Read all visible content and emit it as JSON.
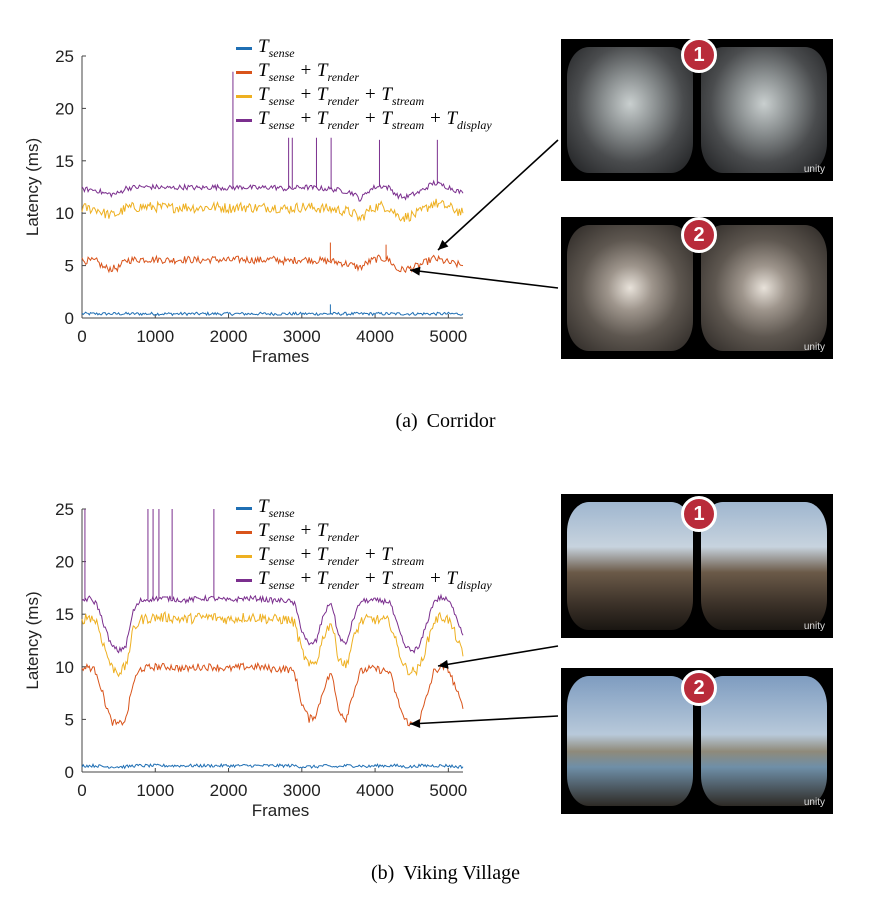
{
  "chart_data": [
    {
      "type": "line",
      "caption_label": "(a)",
      "caption_text": "Corridor",
      "xlabel": "Frames",
      "ylabel": "Latency (ms)",
      "xlim": [
        0,
        5200
      ],
      "ylim": [
        0,
        25
      ],
      "xticks": [
        0,
        1000,
        2000,
        3000,
        4000,
        5000
      ],
      "yticks": [
        0,
        5,
        10,
        15,
        20,
        25
      ],
      "legend_position": "top",
      "x": [
        0,
        200,
        300,
        400,
        500,
        600,
        800,
        1000,
        1200,
        1400,
        1600,
        1800,
        2000,
        2200,
        2400,
        2600,
        2800,
        3000,
        3200,
        3400,
        3600,
        3700,
        3800,
        3900,
        4000,
        4100,
        4200,
        4300,
        4400,
        4600,
        4800,
        5000,
        5200
      ],
      "series": [
        {
          "name": "T_sense",
          "label_main": "T",
          "label_sub": "sense",
          "color": "#1f6fb4",
          "values": [
            0.4,
            0.4,
            0.4,
            0.4,
            0.4,
            0.4,
            0.4,
            0.4,
            0.4,
            0.4,
            0.4,
            0.4,
            0.4,
            0.4,
            0.4,
            0.4,
            0.4,
            0.4,
            0.4,
            0.4,
            0.4,
            0.4,
            0.4,
            0.4,
            0.4,
            0.4,
            0.4,
            0.4,
            0.4,
            0.4,
            0.4,
            0.4,
            0.4
          ]
        },
        {
          "name": "T_sense + T_render",
          "label_main": "T",
          "label_sub": "sense",
          "label_rest": " + T",
          "label_sub2": "render",
          "color": "#d9541b",
          "values": [
            5.5,
            5.4,
            4.8,
            4.7,
            4.8,
            5.5,
            5.6,
            5.6,
            5.5,
            5.6,
            5.5,
            5.6,
            5.5,
            5.6,
            5.5,
            5.6,
            5.4,
            5.6,
            5.5,
            5.4,
            5.2,
            5.0,
            4.8,
            5.3,
            5.6,
            5.7,
            5.5,
            4.6,
            4.6,
            5.0,
            5.7,
            5.3,
            5.0
          ]
        },
        {
          "name": "T_sense + T_render + T_stream",
          "color": "#eeb021",
          "values": [
            10.5,
            10.4,
            10.0,
            9.8,
            10.0,
            10.5,
            10.6,
            10.6,
            10.5,
            10.6,
            10.5,
            10.6,
            10.5,
            10.6,
            10.5,
            10.6,
            10.4,
            10.6,
            10.5,
            10.4,
            10.2,
            10.0,
            9.4,
            10.2,
            10.6,
            10.7,
            10.5,
            9.8,
            9.6,
            10.0,
            11.0,
            10.6,
            10.0
          ]
        },
        {
          "name": "T_sense + T_render + T_stream + T_display",
          "color": "#7b2f8e",
          "values": [
            12.3,
            12.2,
            11.9,
            11.8,
            11.9,
            12.4,
            12.5,
            12.5,
            12.4,
            12.5,
            12.4,
            12.5,
            12.4,
            12.5,
            12.4,
            12.5,
            12.3,
            12.5,
            12.4,
            12.3,
            12.1,
            11.9,
            11.3,
            12.1,
            12.5,
            12.6,
            12.4,
            11.7,
            11.5,
            12.0,
            12.9,
            12.5,
            11.9
          ]
        }
      ],
      "spikes": [
        {
          "series": 3,
          "x": 2060,
          "y": 23.5
        },
        {
          "series": 3,
          "x": 2820,
          "y": 17.2
        },
        {
          "series": 3,
          "x": 2870,
          "y": 17.2
        },
        {
          "series": 3,
          "x": 3200,
          "y": 17.2
        },
        {
          "series": 3,
          "x": 3400,
          "y": 17.2
        },
        {
          "series": 3,
          "x": 4060,
          "y": 17.0
        },
        {
          "series": 3,
          "x": 4850,
          "y": 17.0
        },
        {
          "series": 1,
          "x": 3390,
          "y": 7.2
        },
        {
          "series": 1,
          "x": 4150,
          "y": 7.0
        },
        {
          "series": 0,
          "x": 3390,
          "y": 1.3
        }
      ],
      "thumbnails": [
        {
          "badge": "1",
          "brand": "unity"
        },
        {
          "badge": "2",
          "brand": "unity"
        }
      ]
    },
    {
      "type": "line",
      "caption_label": "(b)",
      "caption_text": "Viking Village",
      "xlabel": "Frames",
      "ylabel": "Latency (ms)",
      "xlim": [
        0,
        5200
      ],
      "ylim": [
        0,
        25
      ],
      "xticks": [
        0,
        1000,
        2000,
        3000,
        4000,
        5000
      ],
      "yticks": [
        0,
        5,
        10,
        15,
        20,
        25
      ],
      "legend_position": "top",
      "x": [
        0,
        100,
        200,
        300,
        400,
        500,
        600,
        700,
        800,
        1000,
        1200,
        1400,
        1600,
        1800,
        2000,
        2200,
        2400,
        2600,
        2800,
        2900,
        3000,
        3100,
        3200,
        3300,
        3400,
        3500,
        3600,
        3700,
        3800,
        3900,
        4000,
        4200,
        4300,
        4400,
        4500,
        4600,
        4700,
        4800,
        4900,
        5000,
        5100,
        5200
      ],
      "series": [
        {
          "name": "T_sense",
          "color": "#1f6fb4",
          "values": [
            0.6,
            0.6,
            0.6,
            0.5,
            0.5,
            0.5,
            0.5,
            0.6,
            0.6,
            0.6,
            0.6,
            0.6,
            0.6,
            0.6,
            0.6,
            0.6,
            0.6,
            0.6,
            0.6,
            0.6,
            0.5,
            0.5,
            0.5,
            0.6,
            0.5,
            0.5,
            0.6,
            0.6,
            0.6,
            0.5,
            0.6,
            0.6,
            0.6,
            0.5,
            0.5,
            0.6,
            0.6,
            0.6,
            0.6,
            0.6,
            0.5,
            0.5
          ]
        },
        {
          "name": "T_sense + T_render",
          "color": "#d9541b",
          "values": [
            9.8,
            10.0,
            9.5,
            7.0,
            4.8,
            4.5,
            5.0,
            8.5,
            9.8,
            10.0,
            10.0,
            9.8,
            10.0,
            10.0,
            9.8,
            10.0,
            10.0,
            9.8,
            9.8,
            9.5,
            6.5,
            5.0,
            5.5,
            8.0,
            9.5,
            6.0,
            5.0,
            7.5,
            9.5,
            9.8,
            9.8,
            9.5,
            7.0,
            5.0,
            4.5,
            4.8,
            7.0,
            9.5,
            10.0,
            9.8,
            8.0,
            6.0
          ]
        },
        {
          "name": "T_sense + T_render + T_stream",
          "color": "#eeb021",
          "values": [
            14.5,
            14.8,
            14.3,
            12.0,
            10.0,
            9.5,
            10.0,
            13.5,
            14.5,
            14.7,
            14.7,
            14.5,
            14.7,
            14.7,
            14.5,
            14.7,
            14.7,
            14.5,
            14.5,
            14.2,
            11.5,
            10.0,
            10.5,
            13.0,
            14.3,
            11.0,
            10.0,
            12.5,
            14.3,
            14.5,
            14.5,
            14.3,
            12.0,
            10.0,
            9.5,
            9.8,
            12.0,
            14.3,
            14.8,
            14.5,
            13.0,
            11.0
          ]
        },
        {
          "name": "T_sense + T_render + T_stream + T_display",
          "color": "#7b2f8e",
          "values": [
            16.3,
            16.5,
            16.0,
            14.0,
            12.0,
            11.5,
            12.0,
            15.3,
            16.3,
            16.5,
            16.5,
            16.3,
            16.5,
            16.5,
            16.3,
            16.5,
            16.5,
            16.3,
            16.3,
            16.0,
            13.5,
            12.0,
            12.5,
            15.0,
            16.2,
            13.0,
            12.0,
            14.5,
            16.2,
            16.3,
            16.3,
            16.2,
            14.0,
            12.0,
            11.5,
            11.8,
            14.0,
            16.2,
            16.6,
            16.3,
            15.0,
            13.0
          ]
        }
      ],
      "spikes": [
        {
          "series": 3,
          "x": 40,
          "y": 25.0
        },
        {
          "series": 3,
          "x": 900,
          "y": 25.0
        },
        {
          "series": 3,
          "x": 970,
          "y": 25.0
        },
        {
          "series": 3,
          "x": 1050,
          "y": 25.0
        },
        {
          "series": 3,
          "x": 1230,
          "y": 25.0
        },
        {
          "series": 3,
          "x": 1800,
          "y": 25.0
        }
      ],
      "thumbnails": [
        {
          "badge": "1",
          "brand": "unity"
        },
        {
          "badge": "2",
          "brand": "unity"
        }
      ]
    }
  ]
}
